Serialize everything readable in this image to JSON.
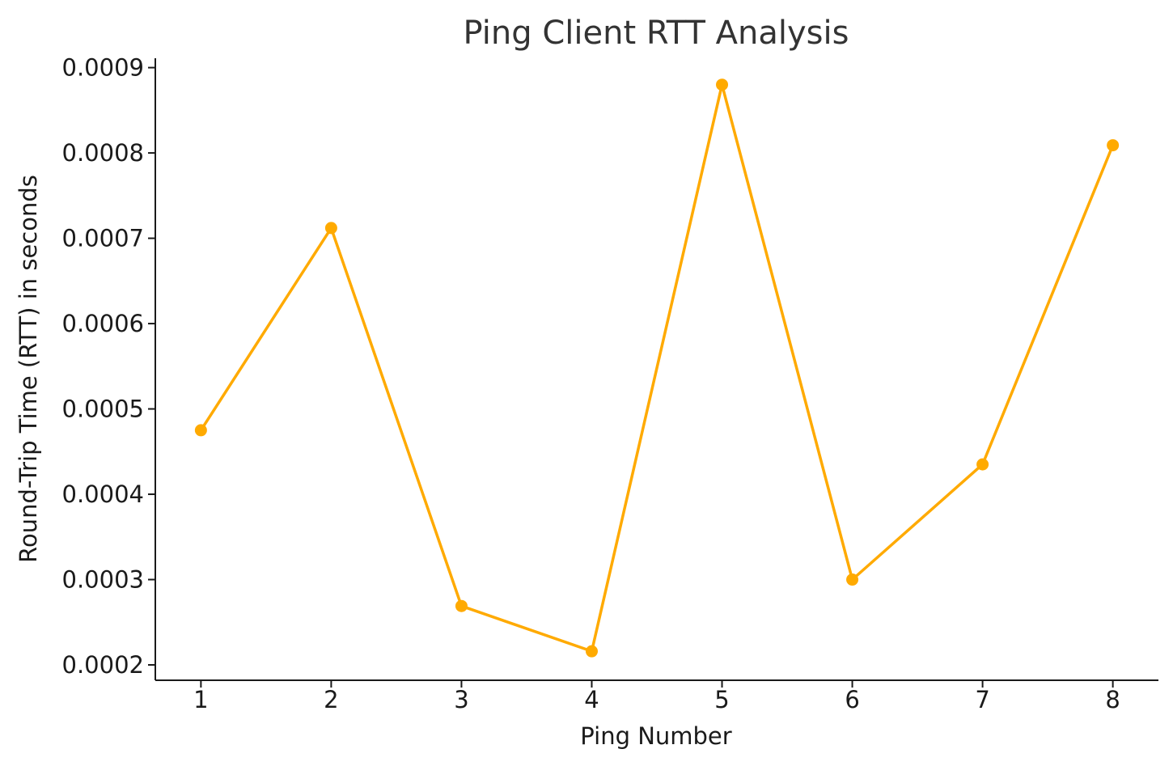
{
  "chart_data": {
    "type": "line",
    "title": "Ping Client RTT Analysis",
    "xlabel": "Ping Number",
    "ylabel": "Round-Trip Time (RTT) in seconds",
    "x": [
      1,
      2,
      3,
      4,
      5,
      6,
      7,
      8
    ],
    "x_tick_labels": [
      "1",
      "2",
      "3",
      "4",
      "5",
      "6",
      "7",
      "8"
    ],
    "y_tick_values": [
      0.0002,
      0.0003,
      0.0004,
      0.0005,
      0.0006,
      0.0007,
      0.0008,
      0.0009
    ],
    "y_tick_labels": [
      "0.0002",
      "0.0003",
      "0.0004",
      "0.0005",
      "0.0006",
      "0.0007",
      "0.0008",
      "0.0009"
    ],
    "xlim": [
      0.65,
      8.35
    ],
    "ylim": [
      0.000182,
      0.000911
    ],
    "grid": false,
    "series": [
      {
        "values": [
          0.000475,
          0.000712,
          0.000269,
          0.000216,
          0.00088,
          0.0003,
          0.000435,
          0.000809
        ],
        "color": "#FFAA00",
        "marker": "circle"
      }
    ]
  }
}
